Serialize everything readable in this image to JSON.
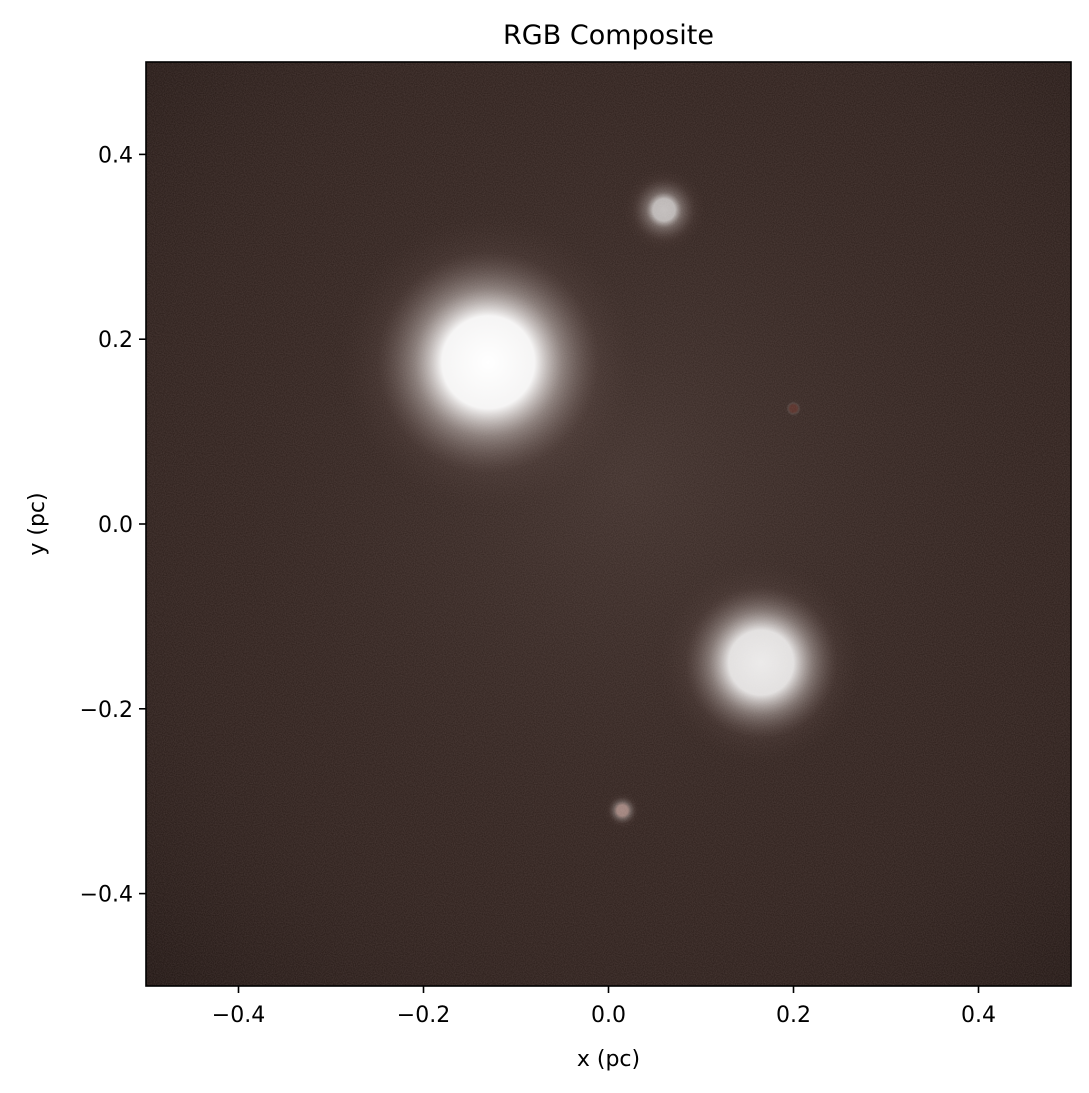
{
  "chart_data": {
    "type": "heatmap",
    "title": "RGB Composite",
    "xlabel": "x (pc)",
    "ylabel": "y (pc)",
    "xlim": [
      -0.5,
      0.5
    ],
    "ylim": [
      -0.5,
      0.5
    ],
    "xticks": [
      -0.4,
      -0.2,
      0.0,
      0.2,
      0.4
    ],
    "yticks": [
      -0.4,
      -0.2,
      0.0,
      0.2,
      0.4
    ],
    "xtick_labels": [
      "−0.4",
      "−0.2",
      "0.0",
      "0.2",
      "0.4"
    ],
    "ytick_labels": [
      "−0.4",
      "−0.2",
      "0.0",
      "0.2",
      "0.4"
    ],
    "grid": false,
    "background_color": "#2a1c18",
    "sources": [
      {
        "x": -0.13,
        "y": 0.175,
        "brightness": 1.0,
        "core_radius": 0.05,
        "halo_radius": 0.16,
        "color": "#ffffff"
      },
      {
        "x": 0.165,
        "y": -0.15,
        "brightness": 0.9,
        "core_radius": 0.035,
        "halo_radius": 0.11,
        "color": "#ffffff"
      },
      {
        "x": 0.06,
        "y": 0.34,
        "brightness": 0.7,
        "core_radius": 0.012,
        "halo_radius": 0.045,
        "color": "#ffffff"
      },
      {
        "x": 0.015,
        "y": -0.31,
        "brightness": 0.55,
        "core_radius": 0.006,
        "halo_radius": 0.02,
        "color": "#ffd8d0"
      },
      {
        "x": 0.2,
        "y": 0.125,
        "brightness": 0.25,
        "core_radius": 0.004,
        "halo_radius": 0.01,
        "color": "#c05040"
      }
    ]
  }
}
